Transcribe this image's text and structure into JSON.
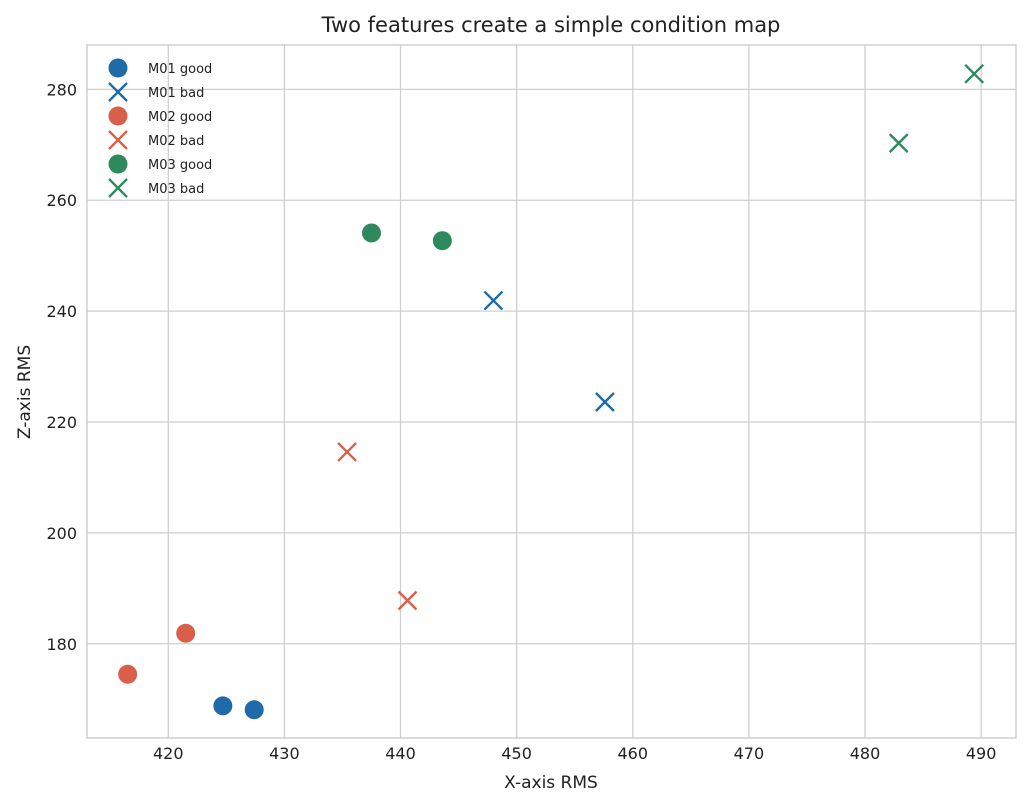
{
  "chart_data": {
    "type": "scatter",
    "title": "Two features create a simple condition map",
    "xlabel": "X-axis RMS",
    "ylabel": "Z-axis RMS",
    "xlim": [
      413,
      493
    ],
    "ylim": [
      163,
      288
    ],
    "xticks": [
      420,
      430,
      440,
      450,
      460,
      470,
      480,
      490
    ],
    "yticks": [
      180,
      200,
      220,
      240,
      260,
      280
    ],
    "grid": true,
    "legend_position": "top-left",
    "series": [
      {
        "name": "M01 good",
        "marker": "circle",
        "color": "#1f6aa8",
        "points": [
          [
            424.7,
            168.8
          ],
          [
            427.4,
            168.1
          ]
        ]
      },
      {
        "name": "M01 bad",
        "marker": "x",
        "color": "#1f6aa8",
        "points": [
          [
            448.0,
            241.9
          ],
          [
            457.6,
            223.6
          ]
        ]
      },
      {
        "name": "M02 good",
        "marker": "circle",
        "color": "#d95f4b",
        "points": [
          [
            416.5,
            174.5
          ],
          [
            421.5,
            181.9
          ]
        ]
      },
      {
        "name": "M02 bad",
        "marker": "x",
        "color": "#d95f4b",
        "points": [
          [
            435.4,
            214.6
          ],
          [
            440.6,
            187.8
          ]
        ]
      },
      {
        "name": "M03 good",
        "marker": "circle",
        "color": "#2e8a5c",
        "points": [
          [
            437.5,
            254.1
          ],
          [
            443.6,
            252.7
          ]
        ]
      },
      {
        "name": "M03 bad",
        "marker": "x",
        "color": "#2e8a5c",
        "points": [
          [
            482.9,
            270.3
          ],
          [
            489.4,
            282.8
          ]
        ]
      }
    ]
  }
}
